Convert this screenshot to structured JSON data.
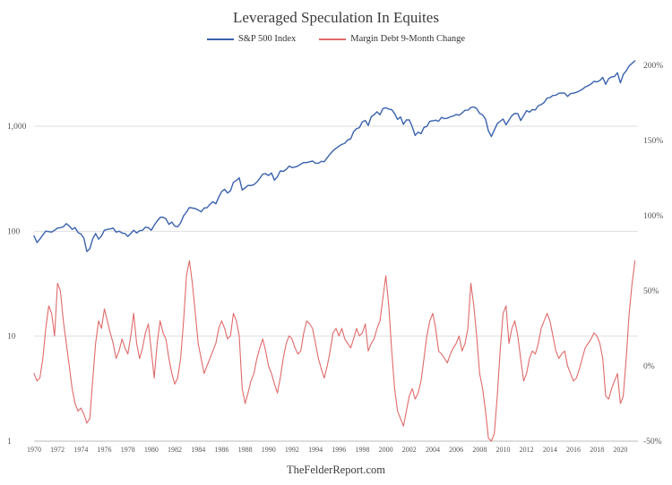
{
  "chart_data": {
    "type": "line",
    "title": "Leveraged Speculation In Equites",
    "footer": "TheFelderReport.com",
    "x_start": 1970,
    "x_step": 0.25,
    "x_end": 2021.5,
    "x_ticks": [
      1970,
      1972,
      1974,
      1976,
      1978,
      1980,
      1982,
      1984,
      1986,
      1988,
      1990,
      1992,
      1994,
      1996,
      1998,
      2000,
      2002,
      2004,
      2006,
      2008,
      2010,
      2012,
      2014,
      2016,
      2018,
      2020
    ],
    "left_axis": {
      "scale": "log",
      "ticks": [
        {
          "v": 1000,
          "label": "1,000"
        },
        {
          "v": 100,
          "label": "100"
        },
        {
          "v": 10,
          "label": "10"
        },
        {
          "v": 1,
          "label": "1"
        }
      ],
      "range": [
        1,
        4300
      ]
    },
    "right_axis": {
      "scale": "linear",
      "unit": "%",
      "ticks": [
        {
          "v": 200,
          "label": "200%"
        },
        {
          "v": 150,
          "label": "150%"
        },
        {
          "v": 100,
          "label": "100%"
        },
        {
          "v": 50,
          "label": "50%"
        },
        {
          "v": 0,
          "label": "0%"
        },
        {
          "v": -50,
          "label": "-50%"
        }
      ],
      "range": [
        -50,
        200
      ]
    },
    "grid": "horizontal-left-decades",
    "legend_position": "top-center",
    "series": [
      {
        "name": "S&P 500 Index",
        "color": "#3a62ad",
        "axis": "left",
        "values": [
          90,
          78,
          84,
          92,
          100,
          99,
          98,
          102,
          107,
          108,
          110,
          118,
          112,
          104,
          108,
          97,
          94,
          86,
          64,
          68,
          84,
          95,
          84,
          90,
          102,
          104,
          105,
          107,
          98,
          100,
          96,
          95,
          89,
          95,
          102,
          96,
          101,
          102,
          109,
          108,
          102,
          114,
          125,
          135,
          136,
          131,
          116,
          122,
          112,
          110,
          120,
          140,
          152,
          168,
          166,
          164,
          159,
          153,
          166,
          167,
          180,
          191,
          182,
          211,
          238,
          250,
          231,
          242,
          292,
          304,
          322,
          247,
          258,
          273,
          272,
          277,
          294,
          318,
          349,
          353,
          339,
          358,
          306,
          330,
          375,
          371,
          387,
          417,
          403,
          408,
          417,
          435,
          451,
          450,
          458,
          466,
          445,
          444,
          462,
          459,
          500,
          544,
          584,
          615,
          645,
          670,
          687,
          740,
          757,
          885,
          947,
          970,
          1101,
          1133,
          1017,
          1229,
          1286,
          1372,
          1282,
          1469,
          1498,
          1454,
          1436,
          1320,
          1160,
          1224,
          1040,
          1148,
          1147,
          989,
          815,
          879,
          848,
          974,
          995,
          1111,
          1126,
          1140,
          1114,
          1211,
          1180,
          1191,
          1228,
          1248,
          1294,
          1270,
          1335,
          1418,
          1420,
          1503,
          1526,
          1468,
          1322,
          1280,
          1166,
          903,
          797,
          919,
          1057,
          1115,
          1169,
          1030,
          1141,
          1257,
          1325,
          1320,
          1131,
          1257,
          1408,
          1362,
          1440,
          1426,
          1569,
          1606,
          1681,
          1848,
          1872,
          1960,
          1972,
          2058,
          2067,
          2063,
          1920,
          2043,
          2059,
          2098,
          2168,
          2238,
          2362,
          2423,
          2519,
          2673,
          2640,
          2718,
          2913,
          2506,
          2834,
          2941,
          2976,
          3230,
          2584,
          3100,
          3363,
          3756,
          3972,
          4200
        ]
      },
      {
        "name": "Margin Debt 9-Month Change",
        "color": "#e06a6a",
        "axis": "right",
        "values": [
          -5,
          -10,
          -8,
          5,
          25,
          40,
          35,
          20,
          55,
          50,
          30,
          15,
          0,
          -15,
          -25,
          -30,
          -28,
          -32,
          -38,
          -35,
          -10,
          15,
          30,
          25,
          38,
          30,
          22,
          15,
          5,
          10,
          18,
          12,
          8,
          20,
          35,
          15,
          5,
          12,
          22,
          28,
          10,
          -8,
          15,
          30,
          22,
          18,
          5,
          -5,
          -12,
          -8,
          5,
          30,
          60,
          70,
          55,
          35,
          15,
          5,
          -5,
          0,
          5,
          10,
          15,
          25,
          30,
          25,
          18,
          20,
          35,
          30,
          20,
          -15,
          -25,
          -18,
          -10,
          -5,
          5,
          12,
          18,
          10,
          0,
          -5,
          -12,
          -18,
          -8,
          5,
          15,
          20,
          18,
          12,
          8,
          10,
          22,
          30,
          28,
          25,
          15,
          5,
          -2,
          -8,
          0,
          10,
          22,
          25,
          20,
          25,
          18,
          15,
          12,
          18,
          25,
          20,
          22,
          28,
          10,
          15,
          18,
          25,
          30,
          45,
          60,
          40,
          10,
          -15,
          -30,
          -35,
          -40,
          -30,
          -20,
          -15,
          -22,
          -18,
          -10,
          5,
          20,
          30,
          35,
          25,
          10,
          8,
          5,
          2,
          8,
          12,
          15,
          20,
          10,
          15,
          25,
          55,
          40,
          20,
          -5,
          -15,
          -30,
          -48,
          -50,
          -45,
          -20,
          10,
          35,
          40,
          15,
          25,
          30,
          20,
          5,
          -10,
          -5,
          5,
          10,
          8,
          15,
          25,
          30,
          35,
          30,
          20,
          10,
          5,
          8,
          10,
          0,
          -5,
          -10,
          -8,
          -2,
          5,
          12,
          15,
          18,
          22,
          20,
          15,
          5,
          -20,
          -22,
          -15,
          -10,
          -5,
          -25,
          -20,
          5,
          35,
          55,
          70
        ]
      }
    ]
  }
}
